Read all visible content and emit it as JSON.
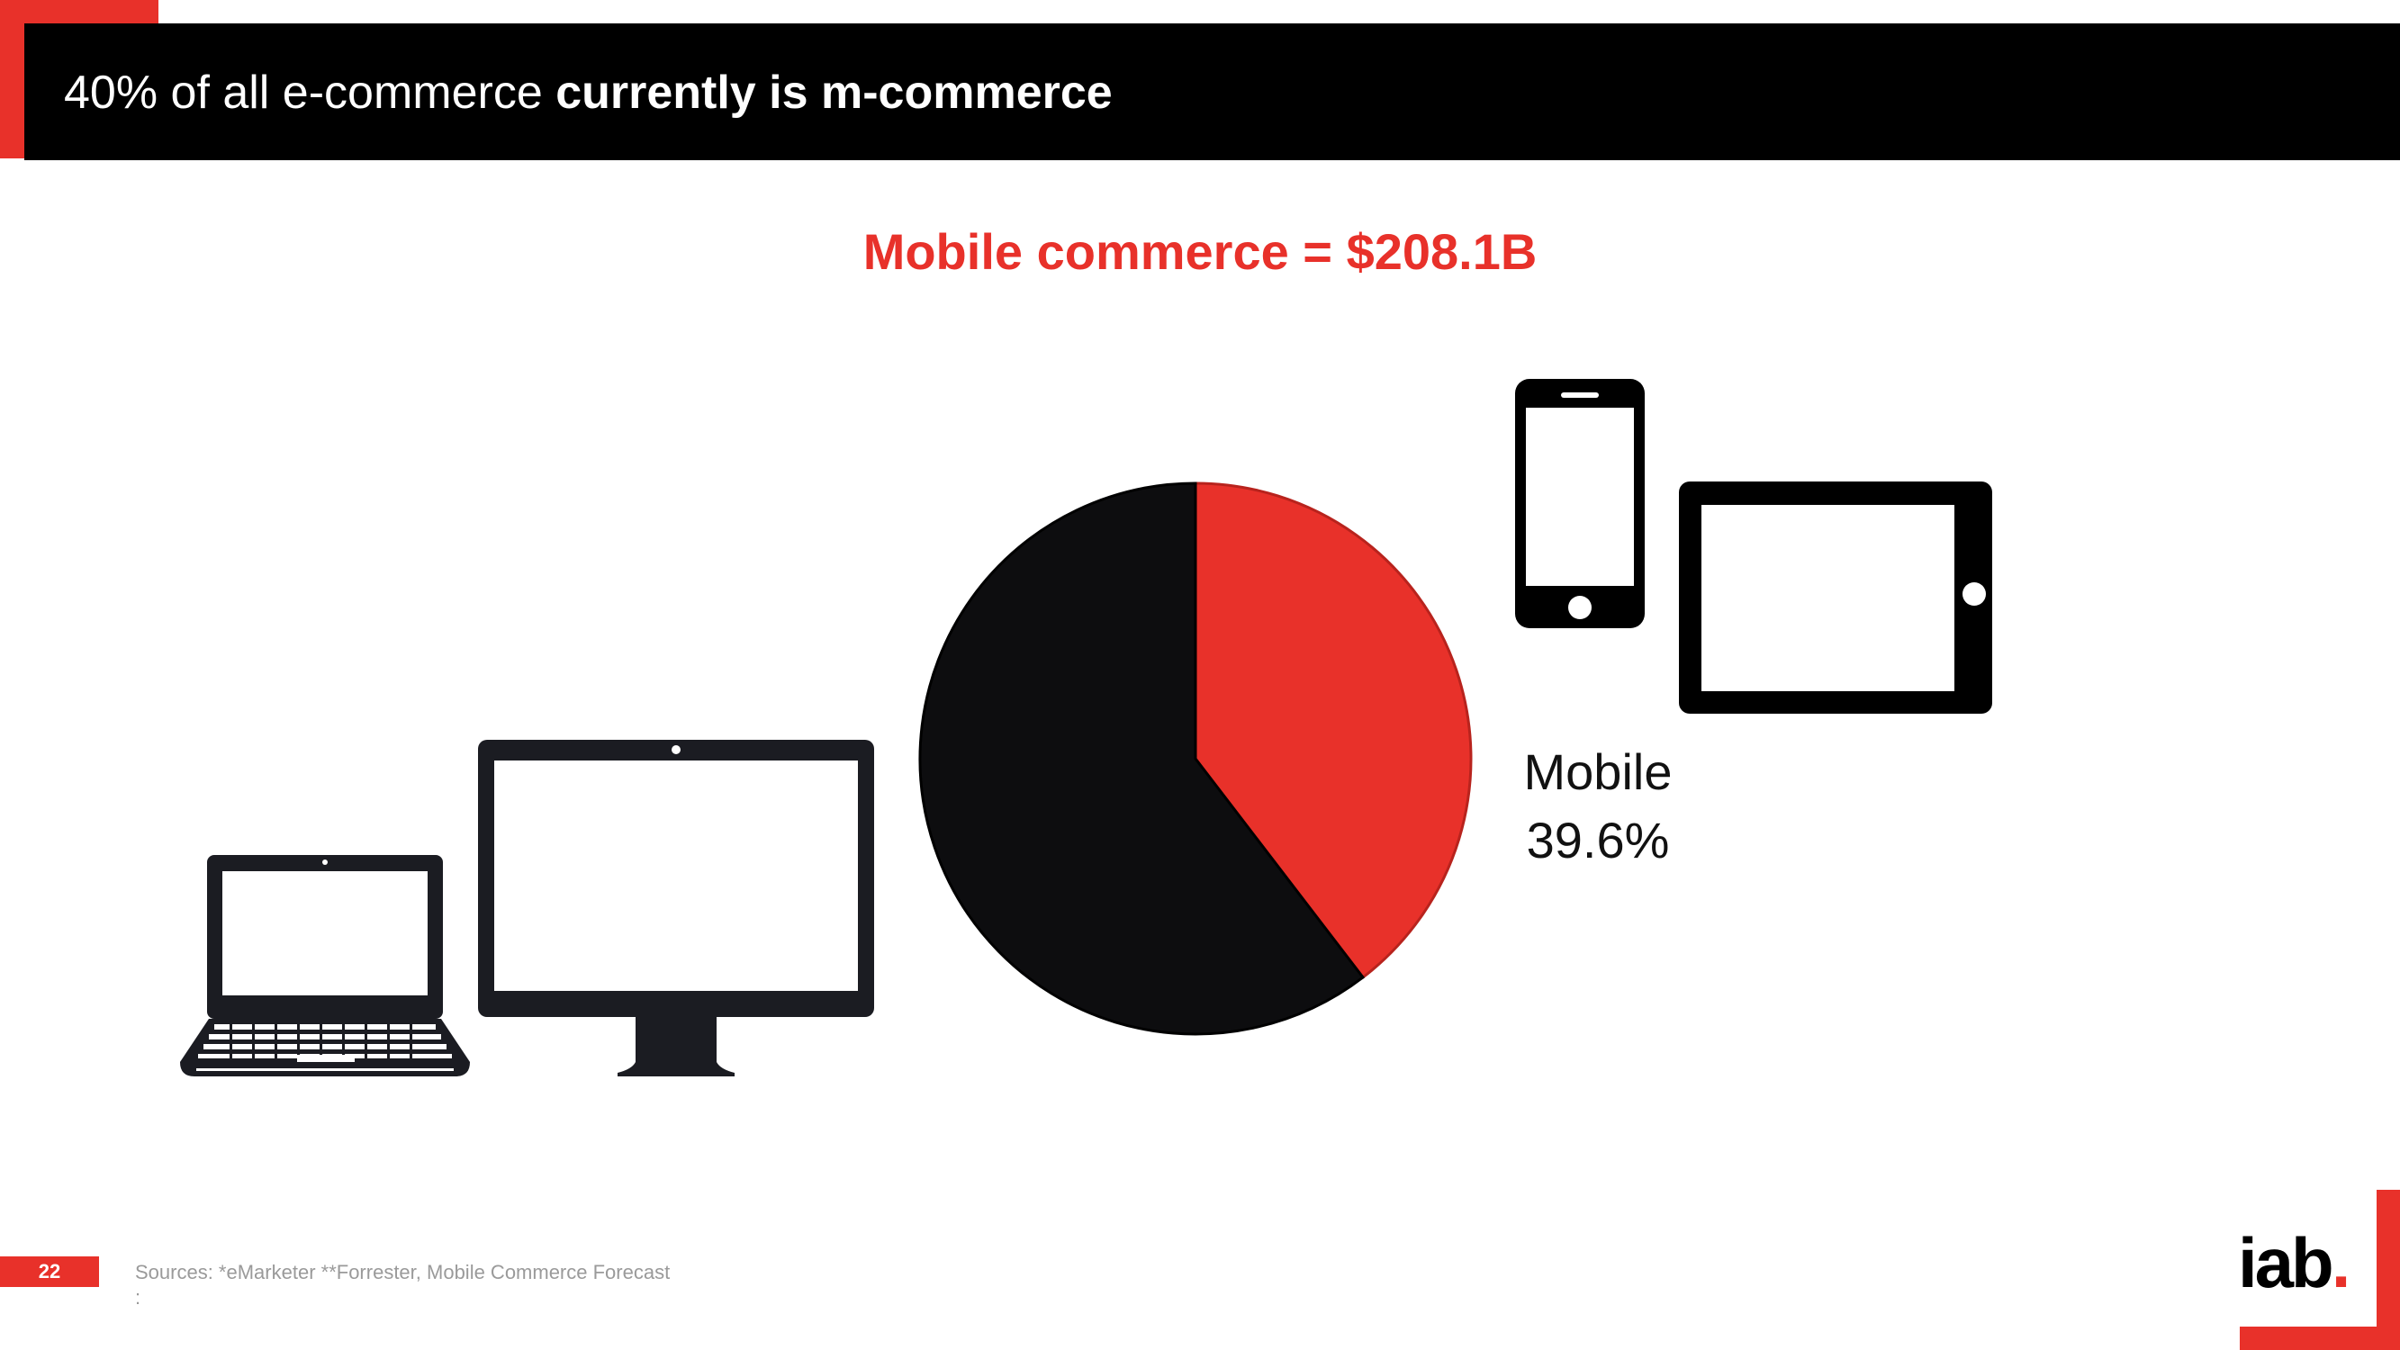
{
  "slide": {
    "title_plain": "40% of all e-commerce ",
    "title_bold": "currently is m-commerce",
    "subtitle": "Mobile commerce = $208.1B",
    "page_number": "22",
    "sources_line1": "Sources: *eMarketer  **Forrester, Mobile Commerce Forecast",
    "sources_line2": ":",
    "logo_text": "iab",
    "logo_dot": "."
  },
  "colors": {
    "accent": "#e8312a",
    "title_bar": "#000000",
    "pie_other": "#0d0d0f",
    "icon_dark": "#1b1c22"
  },
  "icons": [
    "laptop-icon",
    "desktop-monitor-icon",
    "smartphone-icon",
    "tablet-icon"
  ],
  "chart_data": {
    "type": "pie",
    "slices": [
      {
        "label": "Mobile",
        "value": 39.6,
        "value_label": "39.6%",
        "color": "#e8312a"
      },
      {
        "label": "",
        "value": 60.4,
        "color": "#0d0d0f"
      }
    ],
    "title": "Mobile commerce = $208.1B"
  }
}
